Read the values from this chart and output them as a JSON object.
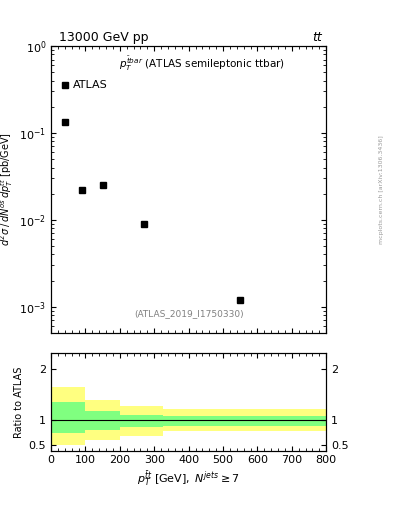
{
  "title_left": "13000 GeV pp",
  "title_right": "tt",
  "annotation": "(ATLAS_2019_I1750330)",
  "watermark": "mcplots.cern.ch [arXiv:1306.3436]",
  "legend_label": "ATLAS",
  "data_x": [
    40,
    90,
    150,
    270,
    550
  ],
  "data_y": [
    0.135,
    0.022,
    0.025,
    0.009,
    0.0012
  ],
  "xlim": [
    0,
    800
  ],
  "ylim_log": [
    0.0005,
    1.0
  ],
  "ratio_ylim": [
    0.4,
    2.3
  ],
  "ratio_yticks": [
    0.5,
    1.0,
    2.0
  ],
  "ratio_ytick_labels": [
    "0.5",
    "1",
    "2"
  ],
  "yellow_band": {
    "edges": [
      0,
      100,
      200,
      325,
      800
    ],
    "upper": [
      1.65,
      1.38,
      1.28,
      1.22,
      1.22
    ],
    "lower": [
      0.5,
      0.6,
      0.68,
      0.78,
      0.78
    ]
  },
  "green_band": {
    "edges": [
      0,
      100,
      200,
      325,
      800
    ],
    "upper": [
      1.35,
      1.18,
      1.1,
      1.08,
      1.08
    ],
    "lower": [
      0.75,
      0.8,
      0.86,
      0.88,
      0.88
    ]
  },
  "ratio_line": 1.0,
  "marker_color": "black",
  "marker": "s",
  "marker_size": 5,
  "yellow_color": "#ffff80",
  "green_color": "#80ff80",
  "background_color": "white",
  "fig_width": 3.93,
  "fig_height": 5.12,
  "dpi": 100
}
